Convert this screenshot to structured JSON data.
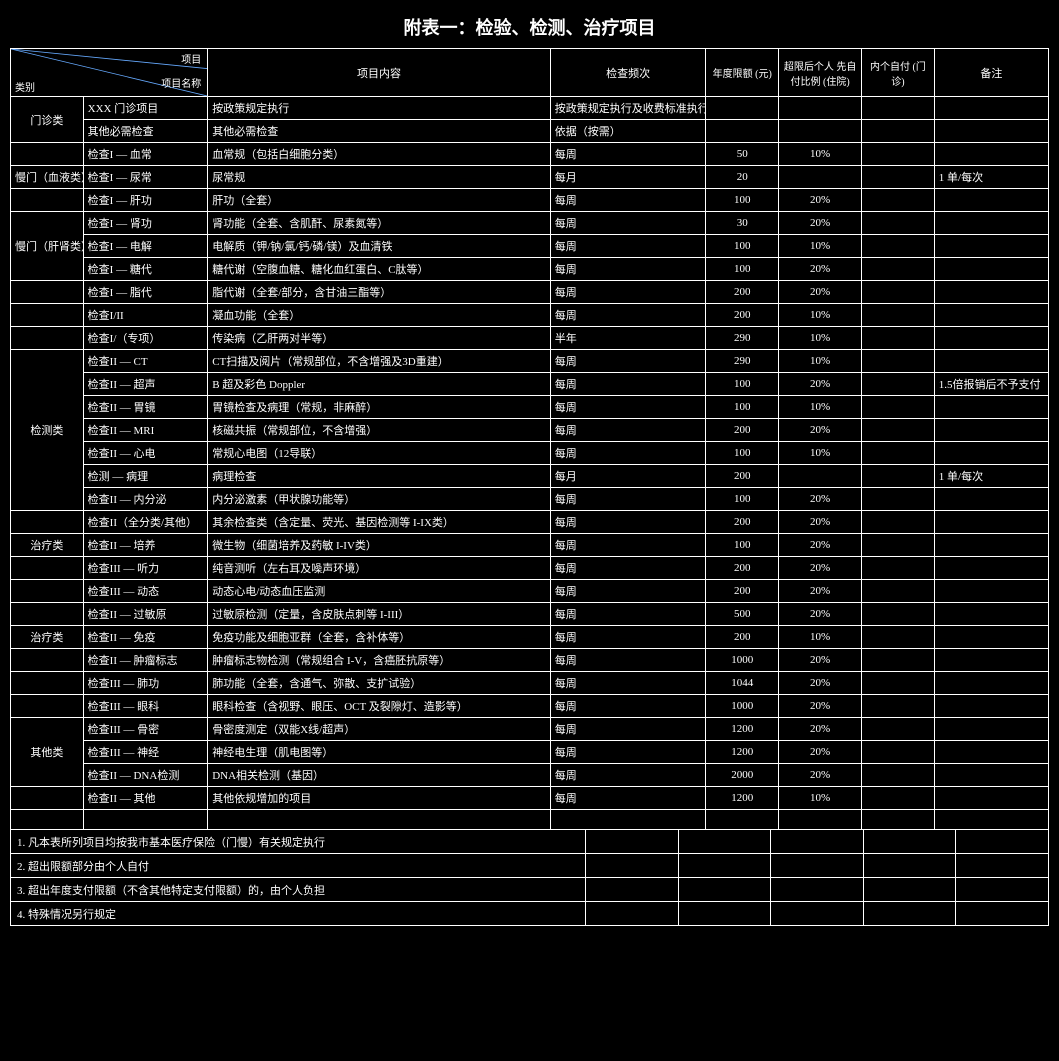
{
  "title": "附表一：检验、检测、治疗项目",
  "head": {
    "diag_top": "项目",
    "diag_mid": "项目名称",
    "diag_bot": "类别",
    "name": "项目内容",
    "freq": "检查频次",
    "limit": "年度限额\n(元)",
    "self_hosp": "超限后个人\n先自付比例\n(住院)",
    "self_out": "内个自付\n(门诊)",
    "note": "备注"
  },
  "rows": [
    {
      "cat": "门诊类",
      "cat_rowspan": 2,
      "code": "XXX 门诊项目",
      "name": "按政策规定执行",
      "freq": "按政策规定执行及收费标准执行",
      "limit": "",
      "selfh": "",
      "selfo": "",
      "note": ""
    },
    {
      "code": "其他必需检查",
      "name": "其他必需检查",
      "freq": "依据（按需）",
      "limit": "",
      "selfh": "",
      "selfo": "",
      "note": ""
    },
    {
      "cat": "",
      "code": "检查I — 血常",
      "name": "血常规（包括白细胞分类）",
      "freq": "每周",
      "limit": "50",
      "selfh": "10%",
      "selfo": "",
      "note": ""
    },
    {
      "cat": "慢门（血液类）",
      "code": "检查I — 尿常",
      "name": "尿常规",
      "freq": "每月",
      "limit": "20",
      "selfh": "",
      "selfo": "",
      "note": "1 单/每次"
    },
    {
      "cat": "",
      "code": "检查I — 肝功",
      "name": "肝功（全套）",
      "freq": "每周",
      "limit": "100",
      "selfh": "20%",
      "selfo": "",
      "note": ""
    },
    {
      "cat": "慢门（肝肾类）",
      "cat_rowspan": 3,
      "code": "检查I — 肾功",
      "name": "肾功能（全套、含肌酐、尿素氮等）",
      "freq": "每周",
      "limit": "30",
      "selfh": "20%",
      "selfo": "",
      "note": ""
    },
    {
      "code": "检查I — 电解",
      "name": "电解质（钾/钠/氯/钙/磷/镁）及血清铁",
      "freq": "每周",
      "limit": "100",
      "selfh": "10%",
      "selfo": "",
      "note": ""
    },
    {
      "code": "检查I — 糖代",
      "name": "糖代谢（空腹血糖、糖化血红蛋白、C肽等）",
      "freq": "每周",
      "limit": "100",
      "selfh": "20%",
      "selfo": "",
      "note": ""
    },
    {
      "cat": "",
      "code": "检查I — 脂代",
      "name": "脂代谢（全套/部分，含甘油三酯等）",
      "freq": "每周",
      "limit": "200",
      "selfh": "20%",
      "selfo": "",
      "note": ""
    },
    {
      "cat": "",
      "code": "检查I/II",
      "name": "凝血功能（全套）",
      "freq": "每周",
      "limit": "200",
      "selfh": "10%",
      "selfo": "",
      "note": ""
    },
    {
      "cat": "",
      "code": "检查I/（专项）",
      "name": "传染病（乙肝两对半等）",
      "freq": "半年",
      "limit": "290",
      "selfh": "10%",
      "selfo": "",
      "note": ""
    },
    {
      "cat": "检测类",
      "cat_rowspan": 7,
      "code": "检查II — CT",
      "name": "CT扫描及阅片（常规部位，不含增强及3D重建）",
      "freq": "每周",
      "limit": "290",
      "selfh": "10%",
      "selfo": "",
      "note": ""
    },
    {
      "code": "检查II — 超声",
      "name": "B 超及彩色 Doppler",
      "freq": "每周",
      "limit": "100",
      "selfh": "20%",
      "selfo": "",
      "note": "1.5倍报销后不予支付"
    },
    {
      "code": "检查II — 胃镜",
      "name": "胃镜检查及病理（常规，非麻醉）",
      "freq": "每周",
      "limit": "100",
      "selfh": "10%",
      "selfo": "",
      "note": ""
    },
    {
      "code": "检查II — MRI",
      "name": "核磁共振（常规部位，不含增强）",
      "freq": "每周",
      "limit": "200",
      "selfh": "20%",
      "selfo": "",
      "note": ""
    },
    {
      "code": "检查II — 心电",
      "name": "常规心电图（12导联）",
      "freq": "每周",
      "limit": "100",
      "selfh": "10%",
      "selfo": "",
      "note": ""
    },
    {
      "code": "检测 — 病理",
      "name": "病理检查",
      "freq": "每月",
      "limit": "200",
      "selfh": "",
      "selfo": "",
      "note": "1 单/每次"
    },
    {
      "code": "检查II — 内分泌",
      "name": "内分泌激素（甲状腺功能等）",
      "freq": "每周",
      "limit": "100",
      "selfh": "20%",
      "selfo": "",
      "note": ""
    },
    {
      "cat": "",
      "code": "检查II（全分类/其他）",
      "name": "其余检查类（含定量、荧光、基因检测等 I-IX类）",
      "freq": "每周",
      "limit": "200",
      "selfh": "20%",
      "selfo": "",
      "note": ""
    },
    {
      "cat": "治疗类",
      "code": "检查II — 培养",
      "name": "微生物（细菌培养及药敏 I-IV类）",
      "freq": "每周",
      "limit": "100",
      "selfh": "20%",
      "selfo": "",
      "note": ""
    },
    {
      "cat": "",
      "code": "检查III — 听力",
      "name": "纯音测听（左右耳及噪声环境）",
      "freq": "每周",
      "limit": "200",
      "selfh": "20%",
      "selfo": "",
      "note": ""
    },
    {
      "cat": "",
      "code": "检查III — 动态",
      "name": "动态心电/动态血压监测",
      "freq": "每周",
      "limit": "200",
      "selfh": "20%",
      "selfo": "",
      "note": ""
    },
    {
      "cat": "",
      "code": "检查II — 过敏原",
      "name": "过敏原检测（定量，含皮肤点刺等 I-III）",
      "freq": "每周",
      "limit": "500",
      "selfh": "20%",
      "selfo": "",
      "note": ""
    },
    {
      "cat": "治疗类",
      "code": "检查II — 免疫",
      "name": "免疫功能及细胞亚群（全套，含补体等）",
      "freq": "每周",
      "limit": "200",
      "selfh": "10%",
      "selfo": "",
      "note": ""
    },
    {
      "cat": "",
      "code": "检查II — 肿瘤标志",
      "name": "肿瘤标志物检测（常规组合 I-V，含癌胚抗原等）",
      "freq": "每周",
      "limit": "1000",
      "selfh": "20%",
      "selfo": "",
      "note": ""
    },
    {
      "cat": "",
      "code": "检查III — 肺功",
      "name": "肺功能（全套，含通气、弥散、支扩试验）",
      "freq": "每周",
      "limit": "1044",
      "selfh": "20%",
      "selfo": "",
      "note": ""
    },
    {
      "cat": "",
      "code": "检查III — 眼科",
      "name": "眼科检查（含视野、眼压、OCT 及裂隙灯、造影等）",
      "freq": "每周",
      "limit": "1000",
      "selfh": "20%",
      "selfo": "",
      "note": ""
    },
    {
      "cat": "其他类",
      "cat_rowspan": 3,
      "code": "检查III — 骨密",
      "name": "骨密度测定（双能X线/超声）",
      "freq": "每周",
      "limit": "1200",
      "selfh": "20%",
      "selfo": "",
      "note": ""
    },
    {
      "code": "检查III — 神经",
      "name": "神经电生理（肌电图等）",
      "freq": "每周",
      "limit": "1200",
      "selfh": "20%",
      "selfo": "",
      "note": ""
    },
    {
      "code": "检查II — DNA检测",
      "name": "DNA相关检测（基因）",
      "freq": "每周",
      "limit": "2000",
      "selfh": "20%",
      "selfo": "",
      "note": ""
    },
    {
      "cat": "",
      "code": "检查II — 其他",
      "name": "其他依规增加的项目",
      "freq": "每周",
      "limit": "1200",
      "selfh": "10%",
      "selfo": "",
      "note": ""
    }
  ],
  "empty_label": "",
  "footer": [
    "1. 凡本表所列项目均按我市基本医疗保险（门慢）有关规定执行",
    "2. 超出限额部分由个人自付",
    "3. 超出年度支付限额（不含其他特定支付限额）的，由个人负担",
    "4. 特殊情况另行规定"
  ]
}
